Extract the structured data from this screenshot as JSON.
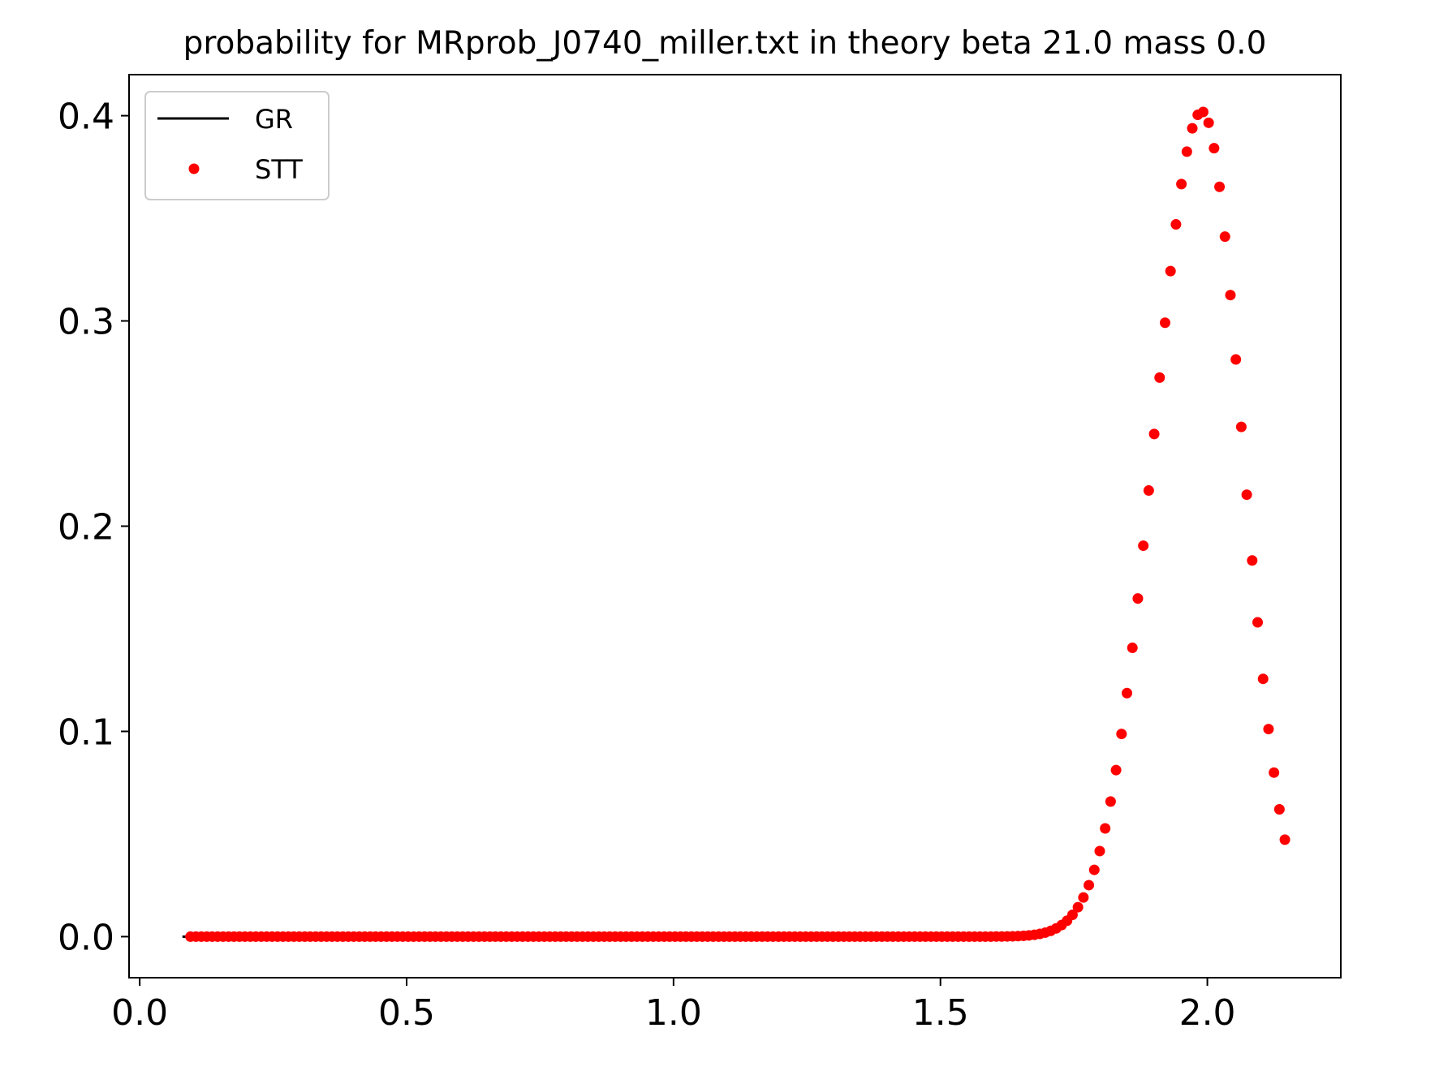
{
  "chart_data": {
    "type": "scatter",
    "title": "probability for MRprob_J0740_miller.txt in theory beta 21.0 mass 0.0",
    "xlabel": "",
    "ylabel": "",
    "xlim": [
      -0.02,
      2.25
    ],
    "ylim": [
      -0.02,
      0.42
    ],
    "x_ticks": [
      0.0,
      0.5,
      1.0,
      1.5,
      2.0
    ],
    "x_tick_labels": [
      "0.0",
      "0.5",
      "1.0",
      "1.5",
      "2.0"
    ],
    "y_ticks": [
      0.0,
      0.1,
      0.2,
      0.3,
      0.4
    ],
    "y_tick_labels": [
      "0.0",
      "0.1",
      "0.2",
      "0.3",
      "0.4"
    ],
    "grid": false,
    "legend": {
      "position": "top-left",
      "entries": [
        "GR",
        "STT"
      ]
    },
    "series": [
      {
        "name": "GR",
        "style": "line",
        "color": "#000000",
        "x": [
          0.08,
          0.1
        ],
        "y": [
          0.0,
          0.0
        ]
      },
      {
        "name": "STT",
        "style": "markers",
        "color": "#ff0000",
        "x_range": [
          0.095,
          2.15
        ],
        "x_step": 0.0102,
        "peak_x": 1.99,
        "peak_y": 0.402,
        "sigma_left": 0.09,
        "sigma_right": 0.075
      }
    ]
  }
}
